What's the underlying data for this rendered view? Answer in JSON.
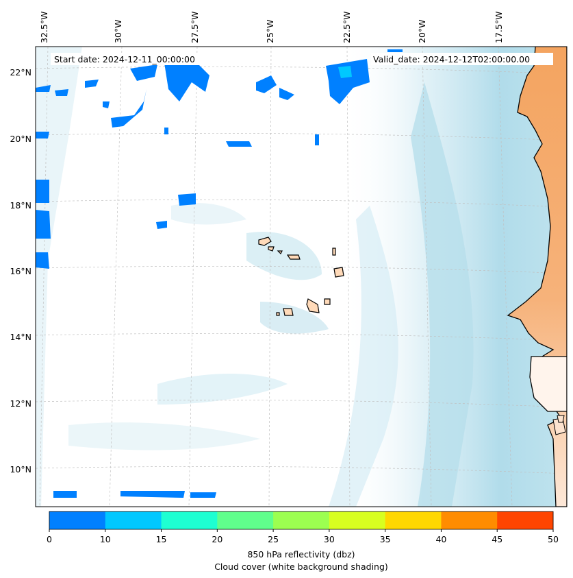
{
  "header": {
    "start_date": "Start date: 2024-12-11_00:00:00",
    "valid_date": "Valid_date: 2024-12-12T02:00:00.00"
  },
  "axes": {
    "lon_labels": [
      "32.5°W",
      "30°W",
      "27.5°W",
      "25°W",
      "22.5°W",
      "20°W",
      "17.5°W"
    ],
    "lat_labels": [
      "22°N",
      "20°N",
      "18°N",
      "16°N",
      "14°N",
      "12°N",
      "10°N"
    ]
  },
  "colorbar": {
    "ticks": [
      "0",
      "10",
      "15",
      "20",
      "25",
      "30",
      "35",
      "40",
      "45",
      "50"
    ],
    "colors": [
      "#0080ff",
      "#00c8ff",
      "#1effd2",
      "#60ff8c",
      "#9cff50",
      "#d8ff20",
      "#ffd700",
      "#ff8c00",
      "#ff4500"
    ],
    "label_line1": "850 hPa reflectivity (dbz)",
    "label_line2": "Cloud cover (white background shading)"
  },
  "palette": {
    "cloud": "#a8d8e8",
    "land_sahara": "#f4a460",
    "land_islands": "#ffdab9",
    "reflectivity_low": "#0080ff"
  }
}
